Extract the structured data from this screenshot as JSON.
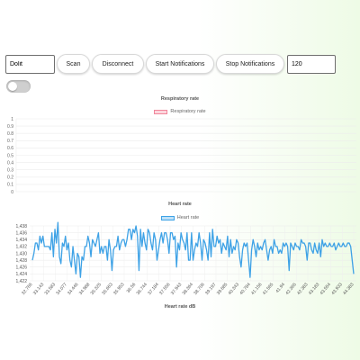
{
  "toolbar": {
    "device_input": {
      "value": "Dolit"
    },
    "scan_label": "Scan",
    "disconnect_label": "Disconnect",
    "start_notifications_label": "Start Notifications",
    "stop_notifications_label": "Stop Notifications",
    "count_input": {
      "value": "120"
    }
  },
  "toggle": {
    "on": false
  },
  "colors": {
    "respiratory_fill": "#fcd5dc",
    "respiratory_line": "#f0869b",
    "heart_fill": "#bfe1f8",
    "heart_line": "#3ea2e6"
  },
  "chart_data": [
    {
      "type": "line",
      "title": "Respiratory rate",
      "series": [
        {
          "name": "Respiratory rate",
          "values": []
        }
      ],
      "y_ticks": [
        "1",
        "0.9",
        "0.8",
        "0.7",
        "0.6",
        "0.5",
        "0.4",
        "0.3",
        "0.2",
        "0.1",
        "0"
      ],
      "ylim": [
        0,
        1
      ],
      "grid": true,
      "legend": "top"
    },
    {
      "type": "line",
      "title": "Heart rate",
      "xlabel": "Heart rate dB",
      "series": [
        {
          "name": "Heart rate",
          "values": [
            1428,
            1430,
            1433,
            1433,
            1431,
            1435,
            1433,
            1435,
            1432,
            1432,
            1432,
            1432,
            1431,
            1436,
            1429,
            1437,
            1433,
            1439,
            1429,
            1427,
            1433,
            1432,
            1435,
            1431,
            1433,
            1428,
            1426,
            1432,
            1428,
            1424,
            1430,
            1429,
            1423,
            1429,
            1428,
            1432,
            1432,
            1435,
            1433,
            1429,
            1434,
            1433,
            1432,
            1434,
            1436,
            1430,
            1432,
            1430,
            1432,
            1432,
            1428,
            1434,
            1431,
            1425,
            1431,
            1432,
            1432,
            1435,
            1431,
            1433,
            1434,
            1434,
            1432,
            1434,
            1437,
            1437,
            1434,
            1437,
            1436,
            1438,
            1435,
            1425,
            1437,
            1432,
            1436,
            1433,
            1431,
            1437,
            1436,
            1433,
            1431,
            1436,
            1434,
            1428,
            1431,
            1434,
            1436,
            1433,
            1436,
            1436,
            1434,
            1430,
            1436,
            1436,
            1434,
            1435,
            1426,
            1433,
            1431,
            1436,
            1434,
            1433,
            1431,
            1436,
            1428,
            1428,
            1436,
            1428,
            1431,
            1433,
            1432,
            1436,
            1433,
            1428,
            1434,
            1433,
            1431,
            1428,
            1436,
            1429,
            1437,
            1432,
            1432,
            1435,
            1433,
            1434,
            1430,
            1433,
            1432,
            1431,
            1435,
            1429,
            1434,
            1430,
            1432,
            1431,
            1434,
            1433,
            1429,
            1426,
            1431,
            1433,
            1432,
            1433,
            1428,
            1423,
            1431,
            1434,
            1432,
            1429,
            1433,
            1431,
            1432,
            1431,
            1433,
            1434,
            1431,
            1428,
            1431,
            1432,
            1430,
            1434,
            1432,
            1432,
            1430,
            1431,
            1430,
            1433,
            1432,
            1433,
            1432,
            1425,
            1433,
            1432,
            1431,
            1433,
            1432,
            1432,
            1431,
            1434,
            1433,
            1433,
            1432,
            1428,
            1433,
            1433,
            1431,
            1430,
            1433,
            1431,
            1430,
            1433,
            1429,
            1434,
            1432,
            1433,
            1432,
            1432,
            1433,
            1432,
            1432,
            1433,
            1431,
            1432,
            1433,
            1432,
            1432,
            1433,
            1432,
            1432,
            1433,
            1433,
            1432,
            1428,
            1424
          ]
        }
      ],
      "x_ticks": [
        "32.766",
        "33.143",
        "33.583",
        "34.077",
        "34.446",
        "34.988",
        "35.325",
        "35.663",
        "35.953",
        "36.56",
        "36.744",
        "37.184",
        "37.556",
        "37.943",
        "38.364",
        "38.706",
        "39.197",
        "39.685",
        "40.343",
        "40.784",
        "41.156",
        "41.565",
        "41.94",
        "42.365",
        "42.383",
        "43.183",
        "43.554",
        "43.933",
        "44.383"
      ],
      "y_ticks": [
        "1,438",
        "1,436",
        "1,434",
        "1,432",
        "1,430",
        "1,428",
        "1,426",
        "1,424",
        "1,422"
      ],
      "ylim": [
        1422,
        1438
      ],
      "grid": true,
      "legend": "top"
    }
  ]
}
